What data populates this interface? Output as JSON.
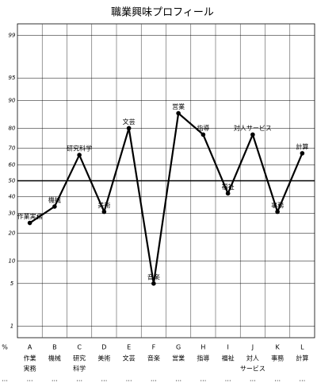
{
  "chart_data": {
    "type": "line",
    "title": "職業興味プロフィール",
    "x_axis_label": "%",
    "categories": [
      "A",
      "B",
      "C",
      "D",
      "E",
      "F",
      "G",
      "H",
      "I",
      "J",
      "K",
      "L"
    ],
    "category_names": [
      [
        "作業",
        "実務"
      ],
      [
        "機械"
      ],
      [
        "研究",
        "科学"
      ],
      [
        "美術"
      ],
      [
        "文芸"
      ],
      [
        "音楽"
      ],
      [
        "営業"
      ],
      [
        "指導"
      ],
      [
        "福祉"
      ],
      [
        "対人",
        "サービス"
      ],
      [
        "事務"
      ],
      [
        "計算"
      ]
    ],
    "point_labels": [
      "作業実務",
      "機械",
      "研究科学",
      "美術",
      "文芸",
      "音楽",
      "営業",
      "指導",
      "福祉",
      "対人サービス",
      "事務",
      "計算"
    ],
    "footer_marks": [
      "…",
      "…",
      "…",
      "…",
      "…",
      "…",
      "…",
      "…",
      "…",
      "…",
      "…",
      "…",
      "…"
    ],
    "series": [
      {
        "name": "職業興味",
        "color": "#000000",
        "values": [
          25,
          34,
          66,
          31,
          80,
          5,
          86,
          77,
          42,
          77,
          31,
          67
        ]
      }
    ],
    "y_scale": "probit",
    "ylim": [
      0.6,
      99.4
    ],
    "yticks": [
      1,
      5,
      10,
      20,
      30,
      40,
      50,
      60,
      70,
      80,
      90,
      95,
      99
    ],
    "grid": true,
    "emphasis_tick": 50
  }
}
